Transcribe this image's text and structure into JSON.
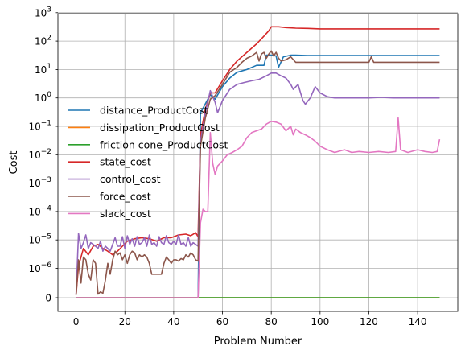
{
  "chart_data": {
    "type": "line",
    "xlabel": "Problem Number",
    "ylabel": "Cost",
    "xlim": [
      -7.45,
      156.45
    ],
    "x_ticks": [
      0,
      20,
      40,
      60,
      80,
      100,
      120,
      140
    ],
    "y_scale": "symlog",
    "y_ticks": [
      {
        "value": 0,
        "label": "0"
      },
      {
        "value": 1e-06,
        "base": "10",
        "exp": "−6"
      },
      {
        "value": 1e-05,
        "base": "10",
        "exp": "−5"
      },
      {
        "value": 0.0001,
        "base": "10",
        "exp": "−4"
      },
      {
        "value": 0.001,
        "base": "10",
        "exp": "−3"
      },
      {
        "value": 0.01,
        "base": "10",
        "exp": "−2"
      },
      {
        "value": 0.1,
        "base": "10",
        "exp": "−1"
      },
      {
        "value": 1,
        "base": "10",
        "exp": "0"
      },
      {
        "value": 10,
        "base": "10",
        "exp": "1"
      },
      {
        "value": 100,
        "base": "10",
        "exp": "2"
      },
      {
        "value": 1000,
        "base": "10",
        "exp": "3"
      }
    ],
    "grid": true,
    "legend_position": "center-left",
    "series": [
      {
        "name": "distance_ProductCost",
        "color": "#1f77b4",
        "points": [
          [
            0,
            0
          ],
          [
            10,
            0
          ],
          [
            20,
            0
          ],
          [
            30,
            0
          ],
          [
            40,
            0
          ],
          [
            50,
            0
          ],
          [
            51,
            0.3
          ],
          [
            55,
            1.3
          ],
          [
            57,
            0.9
          ],
          [
            60,
            2.5
          ],
          [
            63,
            5
          ],
          [
            66,
            8
          ],
          [
            70,
            10
          ],
          [
            74,
            14
          ],
          [
            77,
            14
          ],
          [
            78,
            32
          ],
          [
            80,
            32
          ],
          [
            82,
            30
          ],
          [
            83,
            12
          ],
          [
            85,
            28
          ],
          [
            88,
            32
          ],
          [
            90,
            32
          ],
          [
            95,
            31
          ],
          [
            100,
            31
          ],
          [
            110,
            31
          ],
          [
            120,
            31
          ],
          [
            130,
            31
          ],
          [
            140,
            31
          ],
          [
            149,
            31
          ]
        ]
      },
      {
        "name": "dissipation_ProductCost",
        "color": "#ff7f0e",
        "points": [
          [
            0,
            0
          ],
          [
            50,
            0
          ],
          [
            100,
            0
          ],
          [
            149,
            0
          ]
        ]
      },
      {
        "name": "friction cone_ProductCost",
        "color": "#2ca02c",
        "points": [
          [
            0,
            0
          ],
          [
            50,
            0
          ],
          [
            100,
            0
          ],
          [
            149,
            0
          ]
        ]
      },
      {
        "name": "state_cost",
        "color": "#d62728",
        "points": [
          [
            0,
            1e-07
          ],
          [
            1,
            1.2e-06
          ],
          [
            3,
            5e-06
          ],
          [
            5,
            3e-06
          ],
          [
            7,
            6e-06
          ],
          [
            9,
            7e-06
          ],
          [
            11,
            5e-06
          ],
          [
            13,
            4e-06
          ],
          [
            15,
            3e-06
          ],
          [
            17,
            4e-06
          ],
          [
            19,
            6e-06
          ],
          [
            21,
            9e-06
          ],
          [
            24,
            1.1e-05
          ],
          [
            27,
            1.2e-05
          ],
          [
            30,
            1.1e-05
          ],
          [
            33,
            9e-06
          ],
          [
            36,
            1.2e-05
          ],
          [
            39,
            1.2e-05
          ],
          [
            42,
            1.5e-05
          ],
          [
            45,
            1.6e-05
          ],
          [
            47,
            1.4e-05
          ],
          [
            49,
            1.8e-05
          ],
          [
            50,
            1.3e-05
          ],
          [
            51,
            0.05
          ],
          [
            53,
            0.4
          ],
          [
            55,
            1.5
          ],
          [
            57,
            1.5
          ],
          [
            60,
            4
          ],
          [
            63,
            10
          ],
          [
            66,
            20
          ],
          [
            70,
            40
          ],
          [
            74,
            80
          ],
          [
            77,
            150
          ],
          [
            79,
            230
          ],
          [
            80,
            320
          ],
          [
            83,
            320
          ],
          [
            86,
            300
          ],
          [
            90,
            285
          ],
          [
            95,
            280
          ],
          [
            100,
            270
          ],
          [
            110,
            270
          ],
          [
            120,
            270
          ],
          [
            130,
            270
          ],
          [
            140,
            270
          ],
          [
            149,
            270
          ]
        ]
      },
      {
        "name": "control_cost",
        "color": "#9467bd",
        "points": [
          [
            0,
            1e-07
          ],
          [
            1,
            1.7e-05
          ],
          [
            2,
            5e-06
          ],
          [
            3,
            8e-06
          ],
          [
            4,
            1.5e-05
          ],
          [
            5,
            5e-06
          ],
          [
            6,
            8e-06
          ],
          [
            7,
            7e-06
          ],
          [
            8,
            6e-06
          ],
          [
            9,
            5e-06
          ],
          [
            10,
            9e-06
          ],
          [
            11,
            4e-06
          ],
          [
            12,
            6e-06
          ],
          [
            13,
            5e-06
          ],
          [
            14,
            4e-06
          ],
          [
            15,
            7e-06
          ],
          [
            16,
            1.2e-05
          ],
          [
            17,
            6e-06
          ],
          [
            18,
            6e-06
          ],
          [
            19,
            1.3e-05
          ],
          [
            20,
            5e-06
          ],
          [
            21,
            1.4e-05
          ],
          [
            22,
            7e-06
          ],
          [
            23,
            1.1e-05
          ],
          [
            24,
            6e-06
          ],
          [
            25,
            1.3e-05
          ],
          [
            26,
            7e-06
          ],
          [
            27,
            8e-06
          ],
          [
            28,
            1.2e-05
          ],
          [
            29,
            6e-06
          ],
          [
            30,
            1.5e-05
          ],
          [
            31,
            7e-06
          ],
          [
            32,
            8e-06
          ],
          [
            33,
            6e-06
          ],
          [
            34,
            1.3e-05
          ],
          [
            35,
            8e-06
          ],
          [
            36,
            7e-06
          ],
          [
            37,
            1.4e-05
          ],
          [
            38,
            8e-06
          ],
          [
            39,
            7e-06
          ],
          [
            40,
            9e-06
          ],
          [
            41,
            7e-06
          ],
          [
            42,
            1.5e-05
          ],
          [
            43,
            7e-06
          ],
          [
            44,
            8e-06
          ],
          [
            45,
            6e-06
          ],
          [
            46,
            1.2e-05
          ],
          [
            47,
            6e-06
          ],
          [
            48,
            8e-06
          ],
          [
            49,
            7e-06
          ],
          [
            50,
            6e-06
          ],
          [
            51,
            0.03
          ],
          [
            53,
            0.3
          ],
          [
            55,
            1.8
          ],
          [
            57,
            0.7
          ],
          [
            58,
            0.3
          ],
          [
            60,
            0.8
          ],
          [
            63,
            2.0
          ],
          [
            66,
            3.0
          ],
          [
            69,
            3.5
          ],
          [
            72,
            4.0
          ],
          [
            75,
            4.5
          ],
          [
            78,
            6.0
          ],
          [
            80,
            7.5
          ],
          [
            82,
            7.5
          ],
          [
            84,
            6.0
          ],
          [
            86,
            5.0
          ],
          [
            88,
            3.0
          ],
          [
            89,
            2.0
          ],
          [
            91,
            3.0
          ],
          [
            92,
            1.5
          ],
          [
            93,
            0.8
          ],
          [
            94,
            0.6
          ],
          [
            96,
            1.0
          ],
          [
            98,
            2.5
          ],
          [
            100,
            1.5
          ],
          [
            103,
            1.1
          ],
          [
            106,
            1.0
          ],
          [
            110,
            1.0
          ],
          [
            115,
            1.0
          ],
          [
            120,
            1.0
          ],
          [
            125,
            1.05
          ],
          [
            130,
            1.0
          ],
          [
            135,
            1.0
          ],
          [
            140,
            1.0
          ],
          [
            145,
            1.0
          ],
          [
            149,
            1.0
          ]
        ]
      },
      {
        "name": "force_cost",
        "color": "#8c564b",
        "points": [
          [
            0,
            1e-07
          ],
          [
            1,
            2e-06
          ],
          [
            2,
            5e-07
          ],
          [
            3,
            2.5e-06
          ],
          [
            4,
            2e-06
          ],
          [
            5,
            8e-07
          ],
          [
            6,
            6e-07
          ],
          [
            7,
            2e-06
          ],
          [
            8,
            1.5e-06
          ],
          [
            9,
            1.2e-07
          ],
          [
            10,
            2e-07
          ],
          [
            11,
            1.5e-07
          ],
          [
            12,
            6e-07
          ],
          [
            13,
            1.5e-06
          ],
          [
            14,
            8e-07
          ],
          [
            15,
            2e-06
          ],
          [
            16,
            4e-06
          ],
          [
            17,
            3e-06
          ],
          [
            18,
            3.5e-06
          ],
          [
            19,
            2e-06
          ],
          [
            20,
            3e-06
          ],
          [
            21,
            1.5e-06
          ],
          [
            22,
            3e-06
          ],
          [
            23,
            4e-06
          ],
          [
            24,
            3.5e-06
          ],
          [
            25,
            2e-06
          ],
          [
            26,
            3e-06
          ],
          [
            27,
            2.5e-06
          ],
          [
            28,
            3e-06
          ],
          [
            29,
            2.5e-06
          ],
          [
            30,
            1.5e-06
          ],
          [
            31,
            8e-07
          ],
          [
            32,
            8e-07
          ],
          [
            33,
            8e-07
          ],
          [
            34,
            8e-07
          ],
          [
            35,
            8e-07
          ],
          [
            36,
            1.5e-06
          ],
          [
            37,
            2.5e-06
          ],
          [
            38,
            2e-06
          ],
          [
            39,
            1.5e-06
          ],
          [
            40,
            2e-06
          ],
          [
            41,
            2e-06
          ],
          [
            42,
            1.8e-06
          ],
          [
            43,
            2.2e-06
          ],
          [
            44,
            2e-06
          ],
          [
            45,
            3e-06
          ],
          [
            46,
            2.5e-06
          ],
          [
            47,
            3.5e-06
          ],
          [
            48,
            3e-06
          ],
          [
            49,
            2e-06
          ],
          [
            50,
            1.8e-06
          ],
          [
            51,
            0.02
          ],
          [
            53,
            0.2
          ],
          [
            55,
            0.9
          ],
          [
            57,
            1.2
          ],
          [
            60,
            3
          ],
          [
            63,
            8
          ],
          [
            66,
            12
          ],
          [
            68,
            18
          ],
          [
            70,
            25
          ],
          [
            72,
            30
          ],
          [
            74,
            40
          ],
          [
            75,
            20
          ],
          [
            76,
            35
          ],
          [
            77,
            40
          ],
          [
            78,
            25
          ],
          [
            79,
            35
          ],
          [
            80,
            45
          ],
          [
            81,
            30
          ],
          [
            82,
            40
          ],
          [
            83,
            25
          ],
          [
            84,
            20
          ],
          [
            86,
            22
          ],
          [
            88,
            28
          ],
          [
            90,
            18
          ],
          [
            95,
            18
          ],
          [
            100,
            18
          ],
          [
            110,
            18
          ],
          [
            120,
            18
          ],
          [
            121,
            28
          ],
          [
            122,
            18
          ],
          [
            130,
            18
          ],
          [
            140,
            18
          ],
          [
            149,
            18
          ]
        ]
      },
      {
        "name": "slack_cost",
        "color": "#e377c2",
        "points": [
          [
            0,
            0
          ],
          [
            50,
            0
          ],
          [
            51,
            4e-05
          ],
          [
            52,
            0.00012
          ],
          [
            53,
            0.0001
          ],
          [
            54,
            0.0001
          ],
          [
            55,
            0.06
          ],
          [
            56,
            0.005
          ],
          [
            57,
            0.002
          ],
          [
            58,
            0.004
          ],
          [
            60,
            0.006
          ],
          [
            62,
            0.01
          ],
          [
            64,
            0.012
          ],
          [
            66,
            0.015
          ],
          [
            68,
            0.02
          ],
          [
            70,
            0.04
          ],
          [
            72,
            0.06
          ],
          [
            74,
            0.07
          ],
          [
            76,
            0.08
          ],
          [
            78,
            0.12
          ],
          [
            80,
            0.15
          ],
          [
            82,
            0.14
          ],
          [
            84,
            0.12
          ],
          [
            86,
            0.07
          ],
          [
            88,
            0.1
          ],
          [
            89,
            0.05
          ],
          [
            90,
            0.08
          ],
          [
            92,
            0.06
          ],
          [
            94,
            0.05
          ],
          [
            96,
            0.04
          ],
          [
            98,
            0.03
          ],
          [
            100,
            0.02
          ],
          [
            103,
            0.015
          ],
          [
            106,
            0.012
          ],
          [
            110,
            0.015
          ],
          [
            113,
            0.012
          ],
          [
            116,
            0.013
          ],
          [
            120,
            0.012
          ],
          [
            124,
            0.013
          ],
          [
            128,
            0.012
          ],
          [
            131,
            0.013
          ],
          [
            132,
            0.2
          ],
          [
            133,
            0.015
          ],
          [
            136,
            0.012
          ],
          [
            140,
            0.015
          ],
          [
            143,
            0.013
          ],
          [
            146,
            0.012
          ],
          [
            148,
            0.013
          ],
          [
            149,
            0.035
          ]
        ]
      }
    ]
  }
}
